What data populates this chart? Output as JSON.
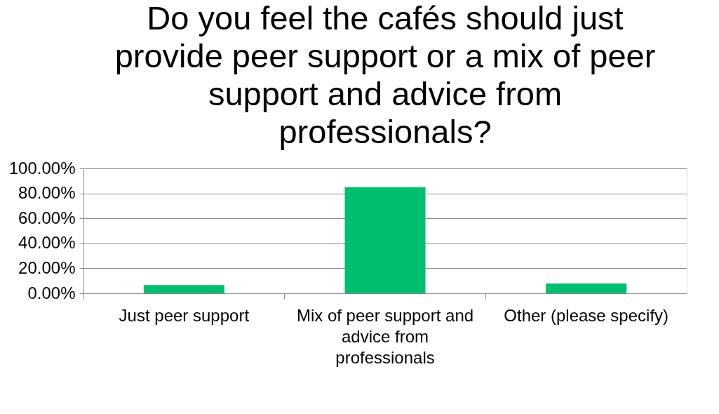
{
  "chart_data": {
    "type": "bar",
    "title": "Do you feel the cafés should just provide peer support or a mix of peer support and advice from professionals?",
    "categories": [
      "Just peer support",
      "Mix of peer support and advice from professionals",
      "Other (please specify)"
    ],
    "values": [
      6.6,
      85.0,
      7.8
    ],
    "color": "#00bf6f",
    "ylim": [
      0,
      100
    ],
    "yticks": [
      {
        "value": 0,
        "label": "0.00%"
      },
      {
        "value": 20,
        "label": "20.00%"
      },
      {
        "value": 40,
        "label": "40.00%"
      },
      {
        "value": 60,
        "label": "60.00%"
      },
      {
        "value": 80,
        "label": "80.00%"
      },
      {
        "value": 100,
        "label": "100.00%"
      }
    ],
    "grid": "y"
  }
}
